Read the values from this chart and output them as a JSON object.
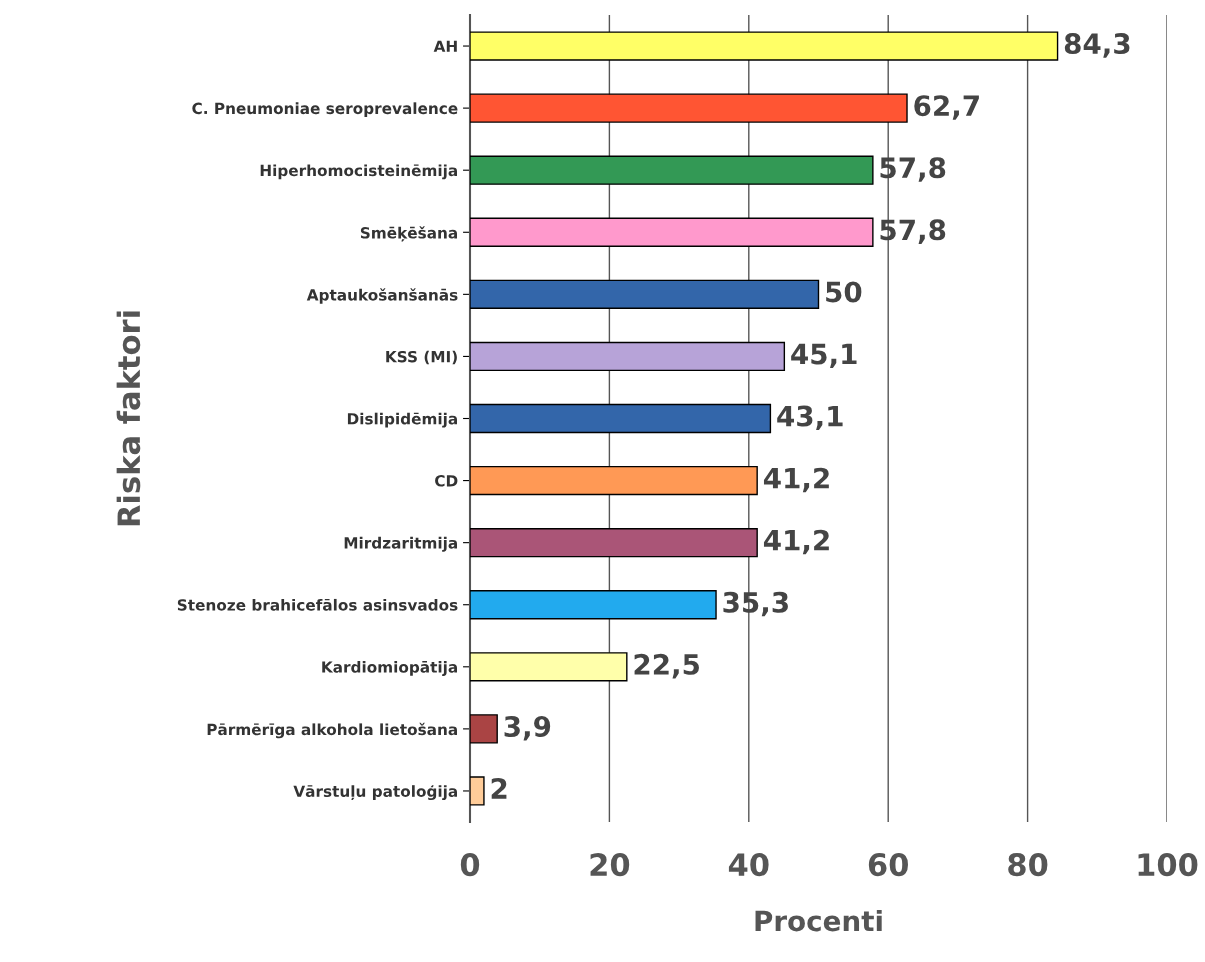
{
  "chart_data": {
    "type": "bar",
    "orientation": "horizontal",
    "xlabel": "Procenti",
    "ylabel": "Riska faktori",
    "categories": [
      "AH",
      "C. Pneumoniae seroprevalence",
      "Hiperhomocisteinēmija",
      "Smēķēšana",
      "Aptaukošanšanās",
      "KSS (MI)",
      "Dislipidēmija",
      "CD",
      "Mirdzaritmija",
      "Stenoze brahicefālos asinsvados",
      "Kardiomiopātija",
      "Pārmērīga alkohola lietošana",
      "Vārstuļu patoloģija"
    ],
    "values": [
      84.3,
      62.7,
      57.8,
      57.8,
      50,
      45.1,
      43.1,
      41.2,
      41.2,
      35.3,
      22.5,
      3.9,
      2
    ],
    "value_labels": [
      "84,3",
      "62,7",
      "57,8",
      "57,8",
      "50",
      "45,1",
      "43,1",
      "41,2",
      "41,2",
      "35,3",
      "22,5",
      "3,9",
      "2"
    ],
    "colors": [
      "#ffff66",
      "#ff5533",
      "#339955",
      "#ff99cc",
      "#3366aa",
      "#b7a3d8",
      "#3366aa",
      "#ff9955",
      "#aa5577",
      "#22aaee",
      "#ffffaa",
      "#aa4444",
      "#ffcc99"
    ],
    "xlim": [
      0,
      100
    ],
    "xticks": [
      0,
      20,
      40,
      60,
      80,
      100
    ],
    "grid": "x",
    "legend": false
  }
}
